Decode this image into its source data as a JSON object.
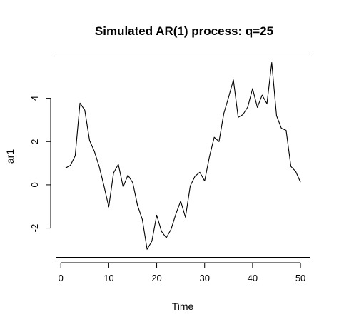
{
  "chart_data": {
    "type": "line",
    "title": "Simulated AR(1) process: q=25",
    "xlabel": "Time",
    "ylabel": "ar1",
    "xlim": [
      -1,
      52
    ],
    "ylim": [
      -3.35,
      5.95
    ],
    "x_ticks": [
      0,
      10,
      20,
      30,
      40,
      50
    ],
    "y_ticks": [
      -2,
      0,
      2,
      4
    ],
    "grid": false,
    "legend": "none",
    "line_color": "#000000",
    "series": [
      {
        "x": [
          1,
          2,
          3,
          4,
          5,
          6,
          7,
          8,
          9,
          10,
          11,
          12,
          13,
          14,
          15,
          16,
          17,
          18,
          19,
          20,
          21,
          22,
          23,
          24,
          25,
          26,
          27,
          28,
          29,
          30,
          31,
          32,
          33,
          34,
          35,
          36,
          37,
          38,
          39,
          40,
          41,
          42,
          43,
          44,
          45,
          46,
          47,
          48,
          49,
          50
        ],
        "values": [
          0.78,
          0.9,
          1.35,
          3.78,
          3.45,
          2.05,
          1.55,
          0.85,
          -0.05,
          -1.02,
          0.55,
          0.95,
          -0.1,
          0.45,
          0.1,
          -0.95,
          -1.6,
          -2.98,
          -2.6,
          -1.4,
          -2.15,
          -2.45,
          -2.05,
          -1.35,
          -0.75,
          -1.5,
          -0.05,
          0.4,
          0.58,
          0.18,
          1.3,
          2.2,
          2.0,
          3.3,
          4.05,
          4.85,
          3.12,
          3.25,
          3.6,
          4.45,
          3.58,
          4.15,
          3.75,
          5.65,
          3.2,
          2.62,
          2.52,
          0.85,
          0.62,
          0.12
        ]
      }
    ]
  }
}
